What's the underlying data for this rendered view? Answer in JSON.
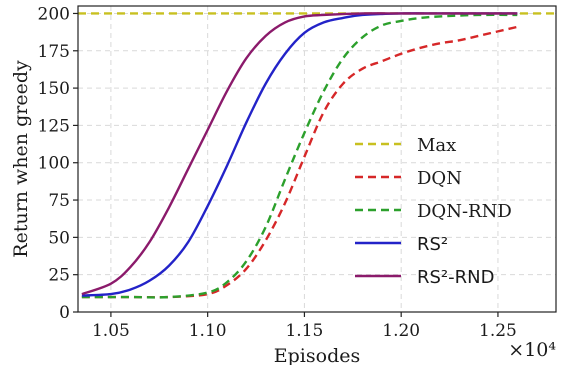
{
  "chart_data": {
    "type": "line",
    "xlabel": "Episodes",
    "ylabel": "Return when greedy",
    "x_offset_label": "×10⁴",
    "xlim": [
      1.033,
      1.28
    ],
    "ylim": [
      0,
      205
    ],
    "x_ticks": [
      "1.05",
      "1.10",
      "1.15",
      "1.20",
      "1.25"
    ],
    "x_tick_values": [
      1.05,
      1.1,
      1.15,
      1.2,
      1.25
    ],
    "y_ticks": [
      "0",
      "25",
      "50",
      "75",
      "100",
      "125",
      "150",
      "175",
      "200"
    ],
    "y_tick_values": [
      0,
      25,
      50,
      75,
      100,
      125,
      150,
      175,
      200
    ],
    "grid": true,
    "legend_position": "lower-right",
    "series": [
      {
        "name": "Max",
        "color": "#c8c020",
        "dashed": true,
        "x": [
          1.033,
          1.28
        ],
        "y": [
          200,
          200
        ]
      },
      {
        "name": "DQN",
        "color": "#d62728",
        "dashed": true,
        "x": [
          1.035,
          1.06,
          1.08,
          1.1,
          1.11,
          1.12,
          1.13,
          1.14,
          1.15,
          1.16,
          1.17,
          1.18,
          1.19,
          1.2,
          1.21,
          1.22,
          1.23,
          1.24,
          1.25,
          1.26
        ],
        "y": [
          10,
          10,
          10,
          12,
          18,
          29,
          48,
          73,
          104,
          134,
          153,
          163,
          168,
          173,
          177,
          180,
          182,
          185,
          188,
          191
        ]
      },
      {
        "name": "DQN-RND",
        "color": "#2ca02c",
        "dashed": true,
        "x": [
          1.035,
          1.06,
          1.08,
          1.1,
          1.11,
          1.12,
          1.13,
          1.14,
          1.15,
          1.16,
          1.17,
          1.18,
          1.19,
          1.2,
          1.21,
          1.22,
          1.24,
          1.26
        ],
        "y": [
          10,
          10,
          10,
          13,
          20,
          34,
          57,
          89,
          120,
          148,
          170,
          184,
          192,
          195,
          197,
          198,
          199,
          199
        ]
      },
      {
        "name": "RS²",
        "color": "#2323c8",
        "dashed": false,
        "x": [
          1.035,
          1.05,
          1.06,
          1.07,
          1.08,
          1.09,
          1.1,
          1.11,
          1.12,
          1.13,
          1.14,
          1.15,
          1.16,
          1.17,
          1.18,
          1.2,
          1.22,
          1.24,
          1.26
        ],
        "y": [
          11,
          12,
          15,
          21,
          31,
          47,
          71,
          98,
          127,
          153,
          173,
          187,
          194,
          197,
          199,
          200,
          200,
          200,
          200
        ]
      },
      {
        "name": "RS²-RND",
        "color": "#8b1a6b",
        "dashed": false,
        "x": [
          1.035,
          1.05,
          1.06,
          1.07,
          1.08,
          1.09,
          1.1,
          1.11,
          1.12,
          1.13,
          1.14,
          1.15,
          1.16,
          1.18,
          1.2,
          1.22,
          1.24,
          1.26
        ],
        "y": [
          12,
          19,
          30,
          47,
          70,
          96,
          122,
          148,
          170,
          185,
          194,
          198,
          199,
          200,
          200,
          200,
          200,
          200
        ]
      }
    ]
  }
}
